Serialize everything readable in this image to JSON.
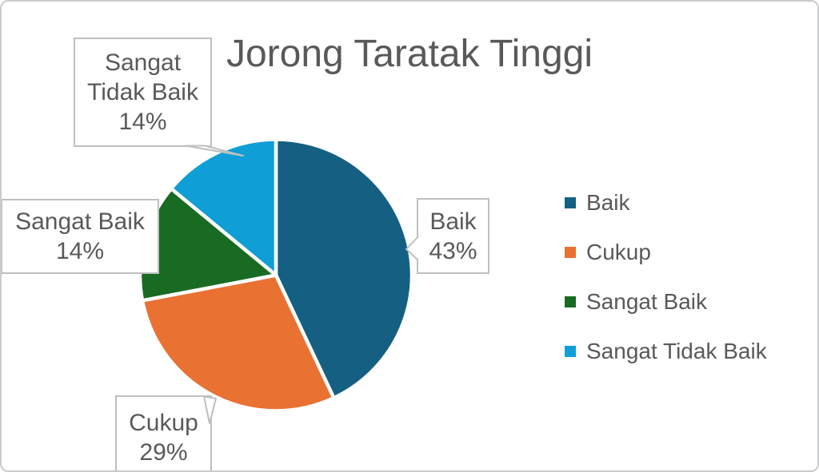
{
  "chart_data": {
    "type": "pie",
    "title": "Jorong Taratak Tinggi",
    "categories": [
      "Baik",
      "Cukup",
      "Sangat Baik",
      "Sangat Tidak Baik"
    ],
    "values": [
      43,
      29,
      14,
      14
    ],
    "unit": "%",
    "colors": [
      "#156082",
      "#E97132",
      "#196B24",
      "#0F9ED5"
    ],
    "start_angle_deg": 0,
    "direction": "clockwise",
    "legend_position": "right",
    "slice_border_color": "#FFFFFF",
    "data_labels": [
      {
        "name": "Baik",
        "value": "43%"
      },
      {
        "name": "Cukup",
        "value": "29%"
      },
      {
        "name": "Sangat Baik",
        "value": "14%"
      },
      {
        "name": "Sangat Tidak Baik",
        "value": "14%"
      }
    ]
  },
  "legend": {
    "items": [
      {
        "label": "Baik",
        "color": "#156082"
      },
      {
        "label": "Cukup",
        "color": "#E97132"
      },
      {
        "label": "Sangat Baik",
        "color": "#196B24"
      },
      {
        "label": "Sangat Tidak Baik",
        "color": "#0F9ED5"
      }
    ]
  },
  "styles": {
    "text_color": "#595959",
    "callout_border_color": "#BFBFBF",
    "frame_border_color": "#C9CBCC",
    "background": "#FFFFFF"
  }
}
